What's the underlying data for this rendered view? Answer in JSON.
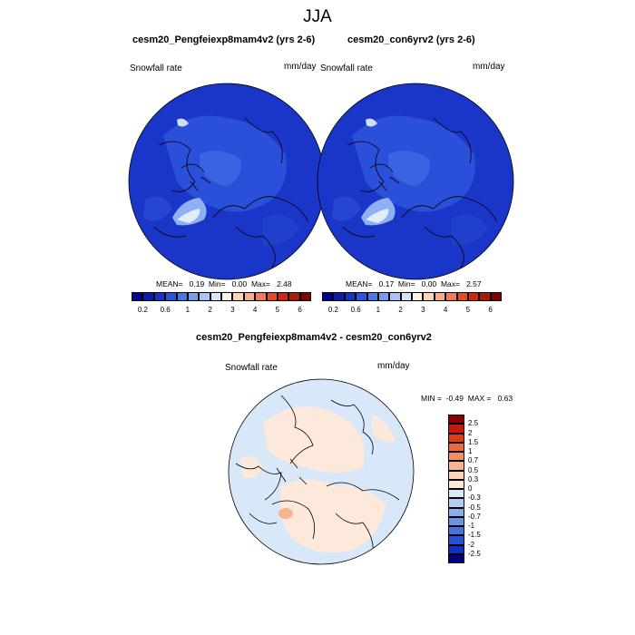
{
  "title": "JJA",
  "panels": [
    {
      "title": "cesm20_Pengfeiexp8mam4v2 (yrs 2-6)",
      "left_label": "Snowfall rate",
      "right_label": "mm/day",
      "stats": {
        "mean_label": "MEAN=",
        "mean": "0.19",
        "min_label": "Min=",
        "min": "0.00",
        "max_label": "Max=",
        "max": "2.48"
      }
    },
    {
      "title": "cesm20_con6yrv2 (yrs 2-6)",
      "left_label": "Snowfall rate",
      "right_label": "mm/day",
      "stats": {
        "mean_label": "MEAN=",
        "mean": "0.17",
        "min_label": "Min=",
        "min": "0.00",
        "max_label": "Max=",
        "max": "2.57"
      }
    }
  ],
  "abs_colorbar": {
    "colors": [
      "#000090",
      "#0a1ca8",
      "#1533c4",
      "#2a55dc",
      "#4a76ea",
      "#7a9cf0",
      "#a9c3f6",
      "#d6e6fa",
      "#fdf2e3",
      "#fbd3b5",
      "#f7ac88",
      "#f27c55",
      "#ea4a22",
      "#cf2712",
      "#a81a0a",
      "#800000"
    ],
    "labels": [
      "0.2",
      "0.6",
      "1",
      "2",
      "3",
      "4",
      "5",
      "6"
    ]
  },
  "diff_panel": {
    "title": "cesm20_Pengfeiexp8mam4v2 - cesm20_con6yrv2",
    "left_label": "Snowfall rate",
    "right_label": "mm/day",
    "stats": {
      "min_label": "MIN =",
      "min": "-0.49",
      "max_label": "MAX =",
      "max": "0.63"
    }
  },
  "diff_colorbar": {
    "colors": [
      "#8b0000",
      "#c9180c",
      "#e23a17",
      "#ee6a3e",
      "#f38f64",
      "#f7b48e",
      "#fad4b8",
      "#fde9dc",
      "#d9e8f8",
      "#b2cdf2",
      "#8aaeeb",
      "#6a92e6",
      "#4574e0",
      "#2451d8",
      "#1030bf",
      "#000080"
    ],
    "labels": [
      "2.5",
      "2",
      "1.5",
      "1",
      "0.7",
      "0.5",
      "0.3",
      "0",
      "-0.3",
      "-0.5",
      "-0.7",
      "-1",
      "-1.5",
      "-2",
      "-2.5"
    ]
  }
}
